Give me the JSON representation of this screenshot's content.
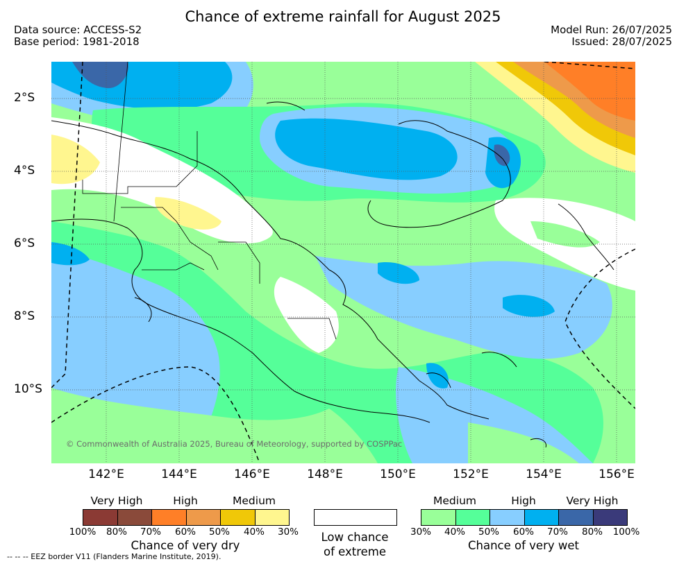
{
  "title": "Chance of extreme rainfall for August 2025",
  "meta": {
    "source": "Data source: ACCESS-S2",
    "base_period": "Base period: 1981-2018",
    "model_run": "Model Run: 26/07/2025",
    "issued": "Issued: 28/07/2025"
  },
  "axes": {
    "lat_labels": [
      "2°S",
      "4°S",
      "6°S",
      "8°S",
      "10°S"
    ],
    "lon_labels": [
      "142°E",
      "144°E",
      "146°E",
      "148°E",
      "150°E",
      "152°E",
      "154°E",
      "156°E"
    ],
    "lon_range": [
      140.5,
      156.5
    ],
    "lat_range": [
      -1.0,
      -12.0
    ]
  },
  "copyright": "© Commonwealth of Australia 2025, Bureau of Meteorology, supported by COSPPac",
  "legend": {
    "dry": {
      "categories": [
        "Very High",
        "High",
        "Medium"
      ],
      "colors": [
        "#8b3a34",
        "#8a4a3a",
        "#ff7f27",
        "#ee9a4a",
        "#f0c808",
        "#fff68f"
      ],
      "ticks": [
        "100%",
        "80%",
        "70%",
        "60%",
        "50%",
        "40%",
        "30%"
      ],
      "title": "Chance of very dry"
    },
    "low": {
      "title_line1": "Low chance",
      "title_line2": "of extreme"
    },
    "wet": {
      "categories": [
        "Medium",
        "High",
        "Very High"
      ],
      "colors": [
        "#99ff99",
        "#55ff99",
        "#87ceff",
        "#00b0f0",
        "#3a67a8",
        "#3a3a7a"
      ],
      "ticks": [
        "30%",
        "40%",
        "50%",
        "60%",
        "70%",
        "80%",
        "100%"
      ],
      "title": "Chance of very wet"
    }
  },
  "eez_note": "-- -- -- EEZ border V11 (Flanders Marine Institute, 2019)."
}
